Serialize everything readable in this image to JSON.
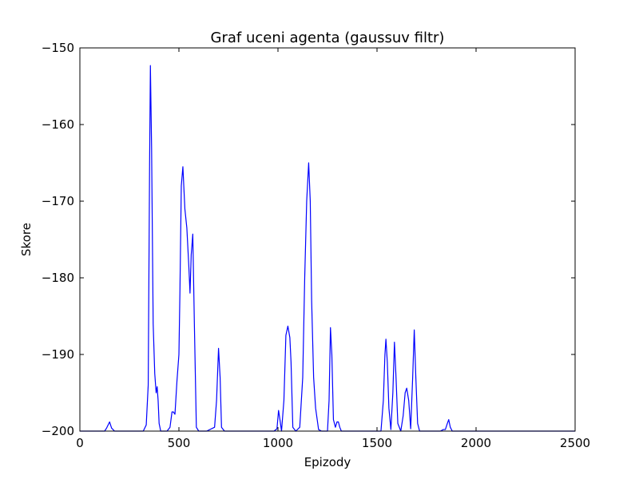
{
  "chart_data": {
    "type": "line",
    "title": "Graf uceni agenta (gaussuv filtr)",
    "xlabel": "Epizody",
    "ylabel": "Skore",
    "xlim": [
      0,
      2500
    ],
    "ylim": [
      -200,
      -150
    ],
    "x_ticks": [
      0,
      500,
      1000,
      1500,
      2000,
      2500
    ],
    "y_ticks": [
      -200,
      -190,
      -180,
      -170,
      -160,
      -150
    ],
    "x_tick_labels": [
      "0",
      "500",
      "1000",
      "1500",
      "2000",
      "2500"
    ],
    "y_tick_labels": [
      "−200",
      "−190",
      "−180",
      "−170",
      "−160",
      "−150"
    ],
    "grid": false,
    "line_color": "#0000ff",
    "series": [
      {
        "x": [
          0,
          125,
          135,
          150,
          160,
          175,
          320,
          335,
          345,
          352,
          356,
          362,
          370,
          378,
          385,
          390,
          395,
          400,
          408,
          420,
          440,
          455,
          465,
          472,
          480,
          490,
          500,
          505,
          512,
          520,
          530,
          540,
          550,
          556,
          562,
          570,
          578,
          588,
          600,
          640,
          680,
          690,
          700,
          708,
          715,
          730,
          980,
          995,
          1003,
          1010,
          1018,
          1030,
          1040,
          1050,
          1060,
          1066,
          1075,
          1090,
          1110,
          1125,
          1135,
          1145,
          1155,
          1163,
          1170,
          1180,
          1190,
          1205,
          1220,
          1250,
          1258,
          1265,
          1272,
          1280,
          1290,
          1298,
          1305,
          1312,
          1320,
          1520,
          1532,
          1540,
          1545,
          1552,
          1560,
          1570,
          1580,
          1588,
          1596,
          1605,
          1620,
          1632,
          1642,
          1650,
          1660,
          1670,
          1680,
          1688,
          1696,
          1705,
          1715,
          1730,
          1820,
          1835,
          1845,
          1855,
          1862,
          1870,
          1880,
          2500
        ],
        "y": [
          -200,
          -200,
          -199.6,
          -198.8,
          -199.6,
          -200,
          -200,
          -199.2,
          -194,
          -165,
          -152.3,
          -163,
          -186,
          -192.5,
          -195,
          -194.2,
          -196,
          -199,
          -200,
          -200,
          -200,
          -199.5,
          -197.5,
          -197.5,
          -197.8,
          -193.5,
          -190,
          -182,
          -168,
          -165.5,
          -171,
          -173.5,
          -178.5,
          -182,
          -177,
          -174.3,
          -186,
          -199.5,
          -200,
          -200,
          -199.5,
          -196,
          -189.2,
          -193,
          -199.5,
          -200,
          -200,
          -199.7,
          -197.3,
          -198.5,
          -200,
          -196,
          -187.5,
          -186.3,
          -187.8,
          -191,
          -199.5,
          -200,
          -199.5,
          -193,
          -180,
          -170,
          -165,
          -170,
          -183,
          -193,
          -197,
          -199.8,
          -200,
          -200,
          -196,
          -186.5,
          -190,
          -198.5,
          -199.5,
          -198.8,
          -198.8,
          -199.5,
          -200,
          -200,
          -196,
          -190,
          -188,
          -191,
          -197,
          -199.8,
          -195,
          -188.4,
          -193,
          -199,
          -200,
          -198,
          -195,
          -194.4,
          -196,
          -199.7,
          -193,
          -186.8,
          -193,
          -199,
          -200,
          -200,
          -200,
          -199.8,
          -199.8,
          -199,
          -198.5,
          -199.5,
          -200,
          -200
        ]
      }
    ]
  }
}
